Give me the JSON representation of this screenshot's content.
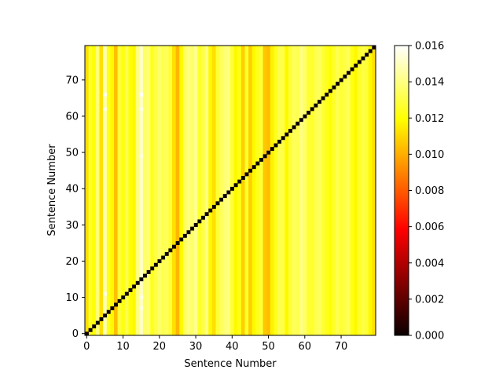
{
  "chart_data": {
    "type": "heatmap",
    "title": "",
    "xlabel": "Sentence Number",
    "ylabel": "Sentence Number",
    "n": 80,
    "xlim": [
      0,
      80
    ],
    "ylim": [
      0,
      80
    ],
    "x_ticks": [
      0,
      10,
      20,
      30,
      40,
      50,
      60,
      70
    ],
    "x_tick_labels": [
      "0",
      "10",
      "20",
      "30",
      "40",
      "50",
      "60",
      "70"
    ],
    "y_ticks": [
      0,
      10,
      20,
      30,
      40,
      50,
      60,
      70
    ],
    "y_tick_labels": [
      "0",
      "10",
      "20",
      "30",
      "40",
      "50",
      "60",
      "70"
    ],
    "colormap": "hot",
    "colormap_stops": [
      "#0b0000",
      "#ff0000",
      "#ffff00",
      "#ffffff"
    ],
    "color_range": [
      0.0,
      0.016
    ],
    "diagonal_value": 0.0,
    "colorbar": {
      "ticks": [
        0.0,
        0.002,
        0.004,
        0.006,
        0.008,
        0.01,
        0.012,
        0.014,
        0.016
      ],
      "tick_labels": [
        "0.000",
        "0.002",
        "0.004",
        "0.006",
        "0.008",
        "0.010",
        "0.012",
        "0.014",
        "0.016"
      ]
    },
    "column_values": [
      0.0112,
      0.0126,
      0.012,
      0.0138,
      0.0112,
      0.0148,
      0.0124,
      0.0118,
      0.0104,
      0.0128,
      0.0122,
      0.0132,
      0.012,
      0.0118,
      0.014,
      0.015,
      0.0136,
      0.0138,
      0.0124,
      0.013,
      0.0136,
      0.0132,
      0.0134,
      0.0128,
      0.0112,
      0.0102,
      0.0118,
      0.0134,
      0.014,
      0.0136,
      0.0142,
      0.0126,
      0.013,
      0.014,
      0.0118,
      0.0112,
      0.0128,
      0.0134,
      0.0138,
      0.014,
      0.0128,
      0.0118,
      0.0122,
      0.0108,
      0.0126,
      0.0108,
      0.0118,
      0.0124,
      0.0128,
      0.0106,
      0.0104,
      0.0116,
      0.0124,
      0.0132,
      0.013,
      0.0118,
      0.0128,
      0.0134,
      0.0132,
      0.014,
      0.0136,
      0.0128,
      0.0126,
      0.0132,
      0.0134,
      0.0128,
      0.0124,
      0.012,
      0.0126,
      0.0132,
      0.0128,
      0.013,
      0.0134,
      0.0122,
      0.0118,
      0.0126,
      0.013,
      0.0128,
      0.0118,
      0.0112
    ],
    "bright_cells": [
      {
        "row": 66,
        "col": 5,
        "value": 0.0158
      },
      {
        "row": 62,
        "col": 5,
        "value": 0.0156
      },
      {
        "row": 11,
        "col": 5,
        "value": 0.0155
      },
      {
        "row": 66,
        "col": 15,
        "value": 0.016
      },
      {
        "row": 62,
        "col": 15,
        "value": 0.0156
      },
      {
        "row": 49,
        "col": 15,
        "value": 0.0154
      },
      {
        "row": 10,
        "col": 15,
        "value": 0.0156
      },
      {
        "row": 7,
        "col": 15,
        "value": 0.0155
      }
    ]
  }
}
